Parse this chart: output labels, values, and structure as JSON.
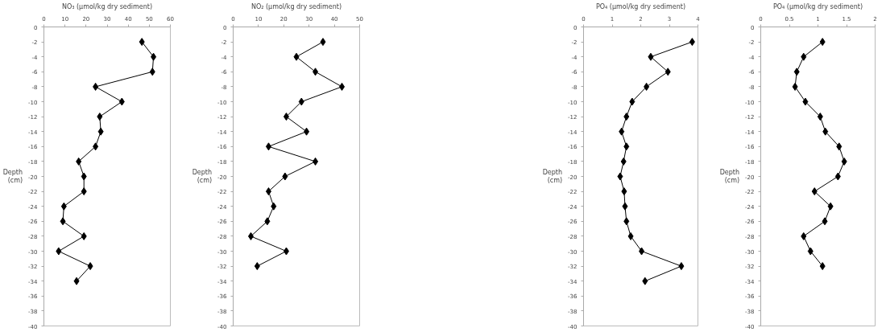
{
  "chart_data": [
    {
      "type": "line",
      "xlabel": "NO₃ (µmol/kg dry sediment)",
      "ylabel": "Depth (cm)",
      "marker": "diamond",
      "grid": false,
      "xlim": [
        0,
        60
      ],
      "xticks": [
        0,
        10,
        20,
        30,
        40,
        50,
        60
      ],
      "ylim": [
        -40,
        0
      ],
      "yticks": [
        0,
        -2,
        -4,
        -6,
        -8,
        -10,
        -12,
        -14,
        -16,
        -18,
        -20,
        -22,
        -24,
        -26,
        -28,
        -30,
        -32,
        -34,
        -36,
        -38,
        -40
      ],
      "series": [
        {
          "color": "#000000",
          "x": [
            46.5,
            52,
            51.5,
            24.5,
            37,
            26.5,
            27,
            24.5,
            16.5,
            19,
            19,
            9.5,
            9,
            19,
            7,
            22,
            15.5
          ],
          "values": [
            -2,
            -4,
            -6,
            -8,
            -10,
            -12,
            -14,
            -16,
            -18,
            -20,
            -22,
            -24,
            -26,
            -28,
            -30,
            -32,
            -34
          ]
        }
      ]
    },
    {
      "type": "line",
      "xlabel": "NO₂ (µmol/kg dry sediment)",
      "ylabel": "Depth (cm)",
      "marker": "diamond",
      "grid": false,
      "xlim": [
        0,
        50
      ],
      "xticks": [
        0,
        10,
        20,
        30,
        40,
        50
      ],
      "ylim": [
        -40,
        0
      ],
      "yticks": [
        0,
        -2,
        -4,
        -6,
        -8,
        -10,
        -12,
        -14,
        -16,
        -18,
        -20,
        -22,
        -24,
        -26,
        -28,
        -30,
        -32,
        -34,
        -36,
        -38,
        -40
      ],
      "series": [
        {
          "color": "#000000",
          "x": [
            35.5,
            25,
            32.5,
            43,
            27,
            21,
            29,
            14,
            32.5,
            20.5,
            14,
            16,
            13.5,
            7,
            21,
            9.5
          ],
          "values": [
            -2,
            -4,
            -6,
            -8,
            -10,
            -12,
            -14,
            -16,
            -18,
            -20,
            -22,
            -24,
            -26,
            -28,
            -30,
            -32
          ]
        }
      ]
    },
    {
      "type": "line",
      "xlabel": "PO₄ (µmol/kg dry sediment)",
      "ylabel": "Depth (cm)",
      "marker": "diamond",
      "grid": false,
      "xlim": [
        0,
        4
      ],
      "xticks": [
        0,
        1,
        2,
        3,
        4
      ],
      "ylim": [
        -40,
        0
      ],
      "yticks": [
        0,
        -2,
        -4,
        -6,
        -8,
        -10,
        -12,
        -14,
        -16,
        -18,
        -20,
        -22,
        -24,
        -26,
        -28,
        -30,
        -32,
        -34,
        -36,
        -38,
        -40
      ],
      "series": [
        {
          "color": "#000000",
          "x": [
            3.8,
            2.35,
            2.95,
            2.2,
            1.7,
            1.5,
            1.33,
            1.5,
            1.4,
            1.28,
            1.42,
            1.45,
            1.5,
            1.65,
            2.03,
            3.42,
            2.15
          ],
          "values": [
            -2,
            -4,
            -6,
            -8,
            -10,
            -12,
            -14,
            -16,
            -18,
            -20,
            -22,
            -24,
            -26,
            -28,
            -30,
            -32,
            -34
          ]
        }
      ]
    },
    {
      "type": "line",
      "xlabel": "PO₄ (µmol/kg dry sediment)",
      "ylabel": "Depth (cm)",
      "marker": "diamond",
      "grid": false,
      "xlim": [
        0,
        2
      ],
      "xticks": [
        0,
        0.5,
        1,
        1.5,
        2
      ],
      "ylim": [
        -40,
        0
      ],
      "yticks": [
        0,
        -2,
        -4,
        -6,
        -8,
        -10,
        -12,
        -14,
        -16,
        -18,
        -20,
        -22,
        -24,
        -26,
        -28,
        -30,
        -32,
        -34,
        -36,
        -38,
        -40
      ],
      "series": [
        {
          "color": "#000000",
          "x": [
            1.08,
            0.75,
            0.63,
            0.6,
            0.78,
            1.04,
            1.13,
            1.37,
            1.46,
            1.35,
            0.94,
            1.22,
            1.12,
            0.75,
            0.87,
            1.08
          ],
          "values": [
            -2,
            -4,
            -6,
            -8,
            -10,
            -12,
            -14,
            -16,
            -18,
            -20,
            -22,
            -24,
            -26,
            -28,
            -30,
            -32
          ]
        }
      ]
    }
  ]
}
